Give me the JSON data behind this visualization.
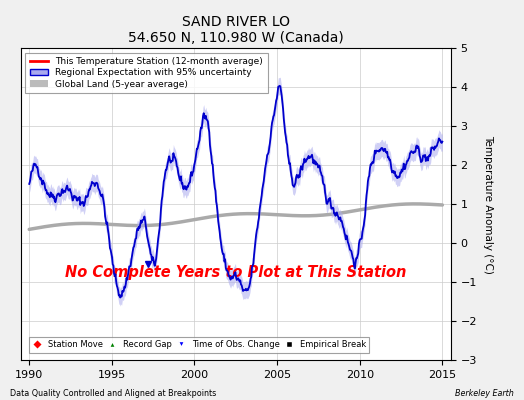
{
  "title": "SAND RIVER LO",
  "subtitle": "54.650 N, 110.980 W (Canada)",
  "xlabel_left": "Data Quality Controlled and Aligned at Breakpoints",
  "xlabel_right": "Berkeley Earth",
  "ylabel": "Temperature Anomaly (°C)",
  "annotation": "No Complete Years to Plot at This Station",
  "annotation_color": "#ff0000",
  "xlim": [
    1989.5,
    2015.5
  ],
  "ylim": [
    -3,
    5
  ],
  "yticks": [
    -3,
    -2,
    -1,
    0,
    1,
    2,
    3,
    4,
    5
  ],
  "xticks": [
    1990,
    1995,
    2000,
    2005,
    2010,
    2015
  ],
  "background_color": "#f0f0f0",
  "plot_bg_color": "#ffffff",
  "grid_color": "#cccccc",
  "regional_color": "#0000cc",
  "regional_fill_color": "#aaaaee",
  "station_color": "#ff0000",
  "global_color": "#aaaaaa",
  "seed": 42
}
